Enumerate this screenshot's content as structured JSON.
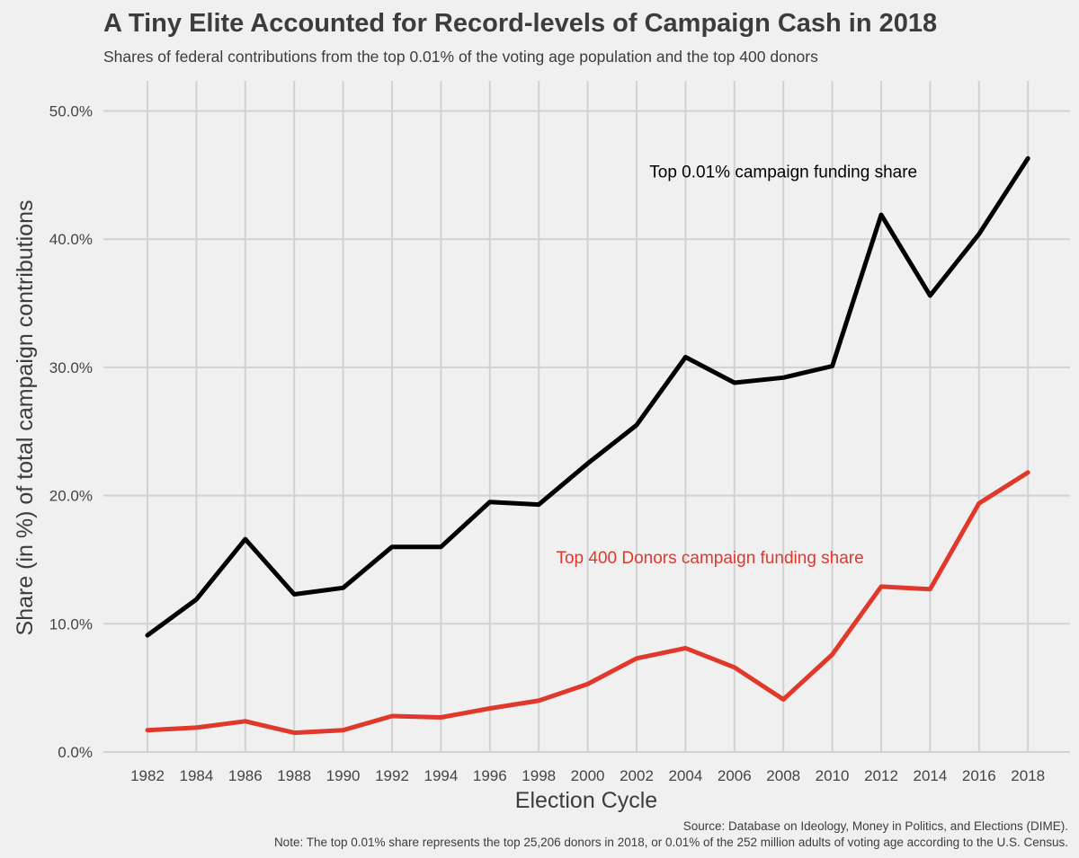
{
  "header": {
    "title": "A Tiny Elite Accounted for Record-levels of Campaign Cash in 2018",
    "subtitle": "Shares of federal contributions from the top 0.01% of the voting age population and the top 400 donors"
  },
  "caption": {
    "source": "Source: Database on Ideology, Money in Politics, and Elections (DIME).",
    "note": "Note: The top 0.01% share represents the top 25,206 donors in 2018, or 0.01% of the 252 million adults of voting age according to the U.S. Census."
  },
  "chart_data": {
    "type": "line",
    "title": "A Tiny Elite Accounted for Record-levels of Campaign Cash in 2018",
    "subtitle": "Shares of federal contributions from the top 0.01% of the voting age population and the top 400 donors",
    "xlabel": "Election Cycle",
    "ylabel": "Share (in %) of total campaign contributions",
    "x": [
      1982,
      1984,
      1986,
      1988,
      1990,
      1992,
      1994,
      1996,
      1998,
      2000,
      2002,
      2004,
      2006,
      2008,
      2010,
      2012,
      2014,
      2016,
      2018
    ],
    "x_tick_labels": [
      "1982",
      "1984",
      "1986",
      "1988",
      "1990",
      "1992",
      "1994",
      "1996",
      "1998",
      "2000",
      "2002",
      "2004",
      "2006",
      "2008",
      "2010",
      "2012",
      "2014",
      "2016",
      "2018"
    ],
    "ylim": [
      0,
      52
    ],
    "y_ticks": [
      0,
      10,
      20,
      30,
      40,
      50
    ],
    "y_tick_labels": [
      "0.0%",
      "10.0%",
      "20.0%",
      "30.0%",
      "40.0%",
      "50.0%"
    ],
    "grid": true,
    "series": [
      {
        "name": "Top 0.01% campaign funding share",
        "color": "#000000",
        "values": [
          9.1,
          11.9,
          16.6,
          12.3,
          12.8,
          16.0,
          16.0,
          19.5,
          19.3,
          22.5,
          25.5,
          30.8,
          28.8,
          29.2,
          30.1,
          41.9,
          35.6,
          40.4,
          46.3
        ],
        "label_at": {
          "x": 2008,
          "y": 45.3
        }
      },
      {
        "name": "Top 400 Donors campaign funding share",
        "color": "#e0392b",
        "values": [
          1.7,
          1.9,
          2.4,
          1.5,
          1.7,
          2.8,
          2.7,
          3.4,
          4.0,
          5.3,
          7.3,
          8.1,
          6.6,
          4.1,
          7.6,
          12.9,
          12.7,
          19.4,
          21.8
        ],
        "label_at": {
          "x": 2005,
          "y": 15.2
        }
      }
    ]
  }
}
